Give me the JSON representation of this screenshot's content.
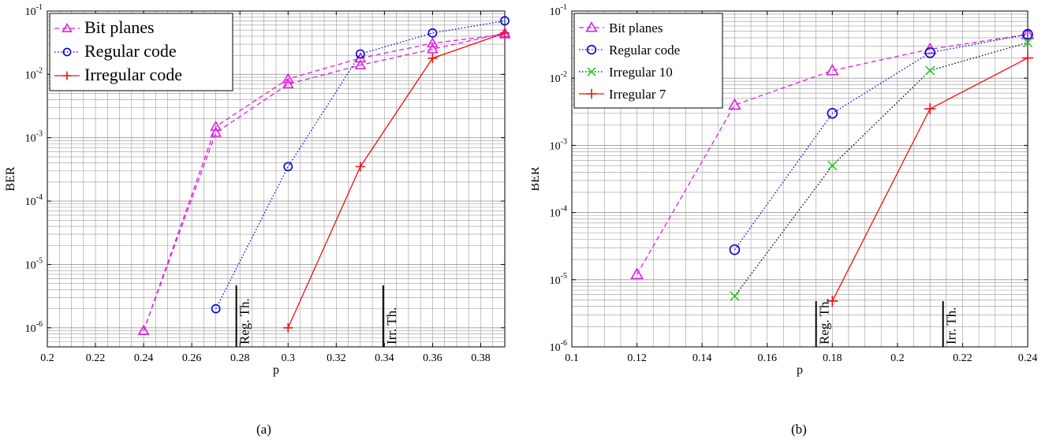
{
  "chart_data": [
    {
      "type": "line",
      "panel_label": "(a)",
      "xlabel": "p",
      "ylabel": "BER",
      "yscale": "log",
      "xlim": [
        0.2,
        0.39
      ],
      "ylim": [
        5e-07,
        0.1
      ],
      "xticks": [
        0.2,
        0.22,
        0.24,
        0.26,
        0.28,
        0.3,
        0.32,
        0.34,
        0.36,
        0.38
      ],
      "xtick_labels": [
        "0.2",
        "0.22",
        "0.24",
        "0.26",
        "0.28",
        "0.3",
        "0.32",
        "0.34",
        "0.36",
        "0.38"
      ],
      "grid": true,
      "legend_position": "top-left",
      "thresholds": [
        {
          "label": "Reg. Th.",
          "x": 0.2785
        },
        {
          "label": "Irr. Th.",
          "x": 0.3395
        }
      ],
      "series": [
        {
          "name": "Bit planes",
          "color": "#e020e0",
          "marker": "triangle",
          "dash": "dashed",
          "x": [
            0.24,
            0.27,
            0.3,
            0.33,
            0.36,
            0.39
          ],
          "y": [
            9e-07,
            0.0012,
            0.007,
            0.014,
            0.025,
            0.045
          ],
          "x2": [
            0.24,
            0.27,
            0.3,
            0.33,
            0.36,
            0.39
          ],
          "y2": [
            9e-07,
            0.0015,
            0.0085,
            0.018,
            0.031,
            0.043
          ]
        },
        {
          "name": "Regular code",
          "color": "#0000dd",
          "marker": "circle",
          "dash": "dotted",
          "x": [
            0.27,
            0.3,
            0.33,
            0.36,
            0.39
          ],
          "y": [
            2e-06,
            0.00035,
            0.021,
            0.045,
            0.07
          ]
        },
        {
          "name": "Irregular code",
          "color": "#ee1111",
          "marker": "plus",
          "dash": "solid",
          "x": [
            0.3,
            0.33,
            0.36,
            0.39
          ],
          "y": [
            1e-06,
            0.00035,
            0.018,
            0.045
          ]
        }
      ]
    },
    {
      "type": "line",
      "panel_label": "(b)",
      "xlabel": "p",
      "ylabel": "BER",
      "yscale": "log",
      "xlim": [
        0.1,
        0.24
      ],
      "ylim": [
        1e-06,
        0.1
      ],
      "xticks": [
        0.1,
        0.12,
        0.14,
        0.16,
        0.18,
        0.2,
        0.22,
        0.24
      ],
      "xtick_labels": [
        "0.1",
        "0.12",
        "0.14",
        "0.16",
        "0.18",
        "0.2",
        "0.22",
        "0.24"
      ],
      "grid": true,
      "legend_position": "top-left",
      "thresholds": [
        {
          "label": "Reg. Th.",
          "x": 0.175
        },
        {
          "label": "Irr. Th.",
          "x": 0.214
        }
      ],
      "series": [
        {
          "name": "Bit planes",
          "color": "#e020e0",
          "marker": "triangle",
          "dash": "dashed",
          "x": [
            0.12,
            0.15,
            0.18,
            0.21,
            0.24
          ],
          "y": [
            1.2e-05,
            0.004,
            0.013,
            0.027,
            0.045
          ]
        },
        {
          "name": "Regular code",
          "color": "#0000dd",
          "marker": "circle",
          "dash": "dotted",
          "x": [
            0.15,
            0.18,
            0.21,
            0.24
          ],
          "y": [
            2.8e-05,
            0.003,
            0.024,
            0.045
          ]
        },
        {
          "name": "Irregular 10",
          "color": "#22cc22",
          "marker": "x",
          "dash": "dotted-black",
          "x": [
            0.15,
            0.18,
            0.21,
            0.24
          ],
          "y": [
            5.7e-06,
            0.0005,
            0.013,
            0.034
          ]
        },
        {
          "name": "Irregular 7",
          "color": "#ee1111",
          "marker": "plus",
          "dash": "solid",
          "x": [
            0.18,
            0.21,
            0.24
          ],
          "y": [
            4.8e-06,
            0.0035,
            0.02
          ]
        }
      ]
    }
  ]
}
